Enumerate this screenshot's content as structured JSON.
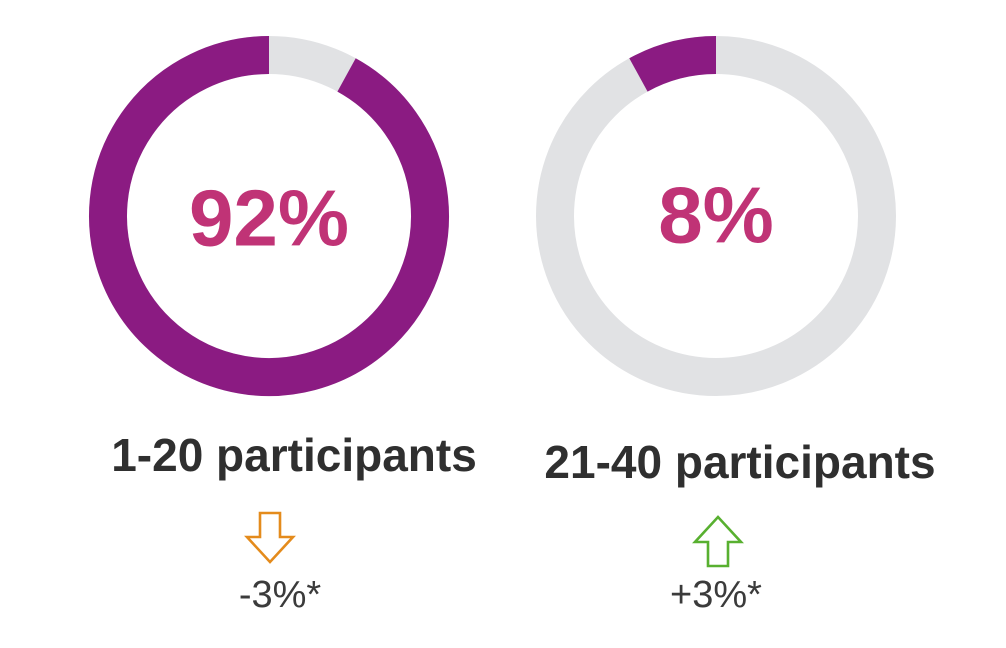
{
  "colors": {
    "filled": "#8b1b82",
    "track": "#e1e2e4",
    "percent_text": "#c03376",
    "arrow_down": "#e48b1c",
    "arrow_up": "#58b030"
  },
  "chart_data": [
    {
      "type": "pie",
      "value": 92,
      "total": 100,
      "center_label": "92%",
      "category": "1-20 participants",
      "change": "-3%*",
      "change_direction": "down",
      "arrow_icon": "arrow-down-icon"
    },
    {
      "type": "pie",
      "value": 8,
      "total": 100,
      "center_label": "8%",
      "category": "21-40 participants",
      "change": "+3%*",
      "change_direction": "up",
      "arrow_icon": "arrow-up-icon"
    }
  ]
}
